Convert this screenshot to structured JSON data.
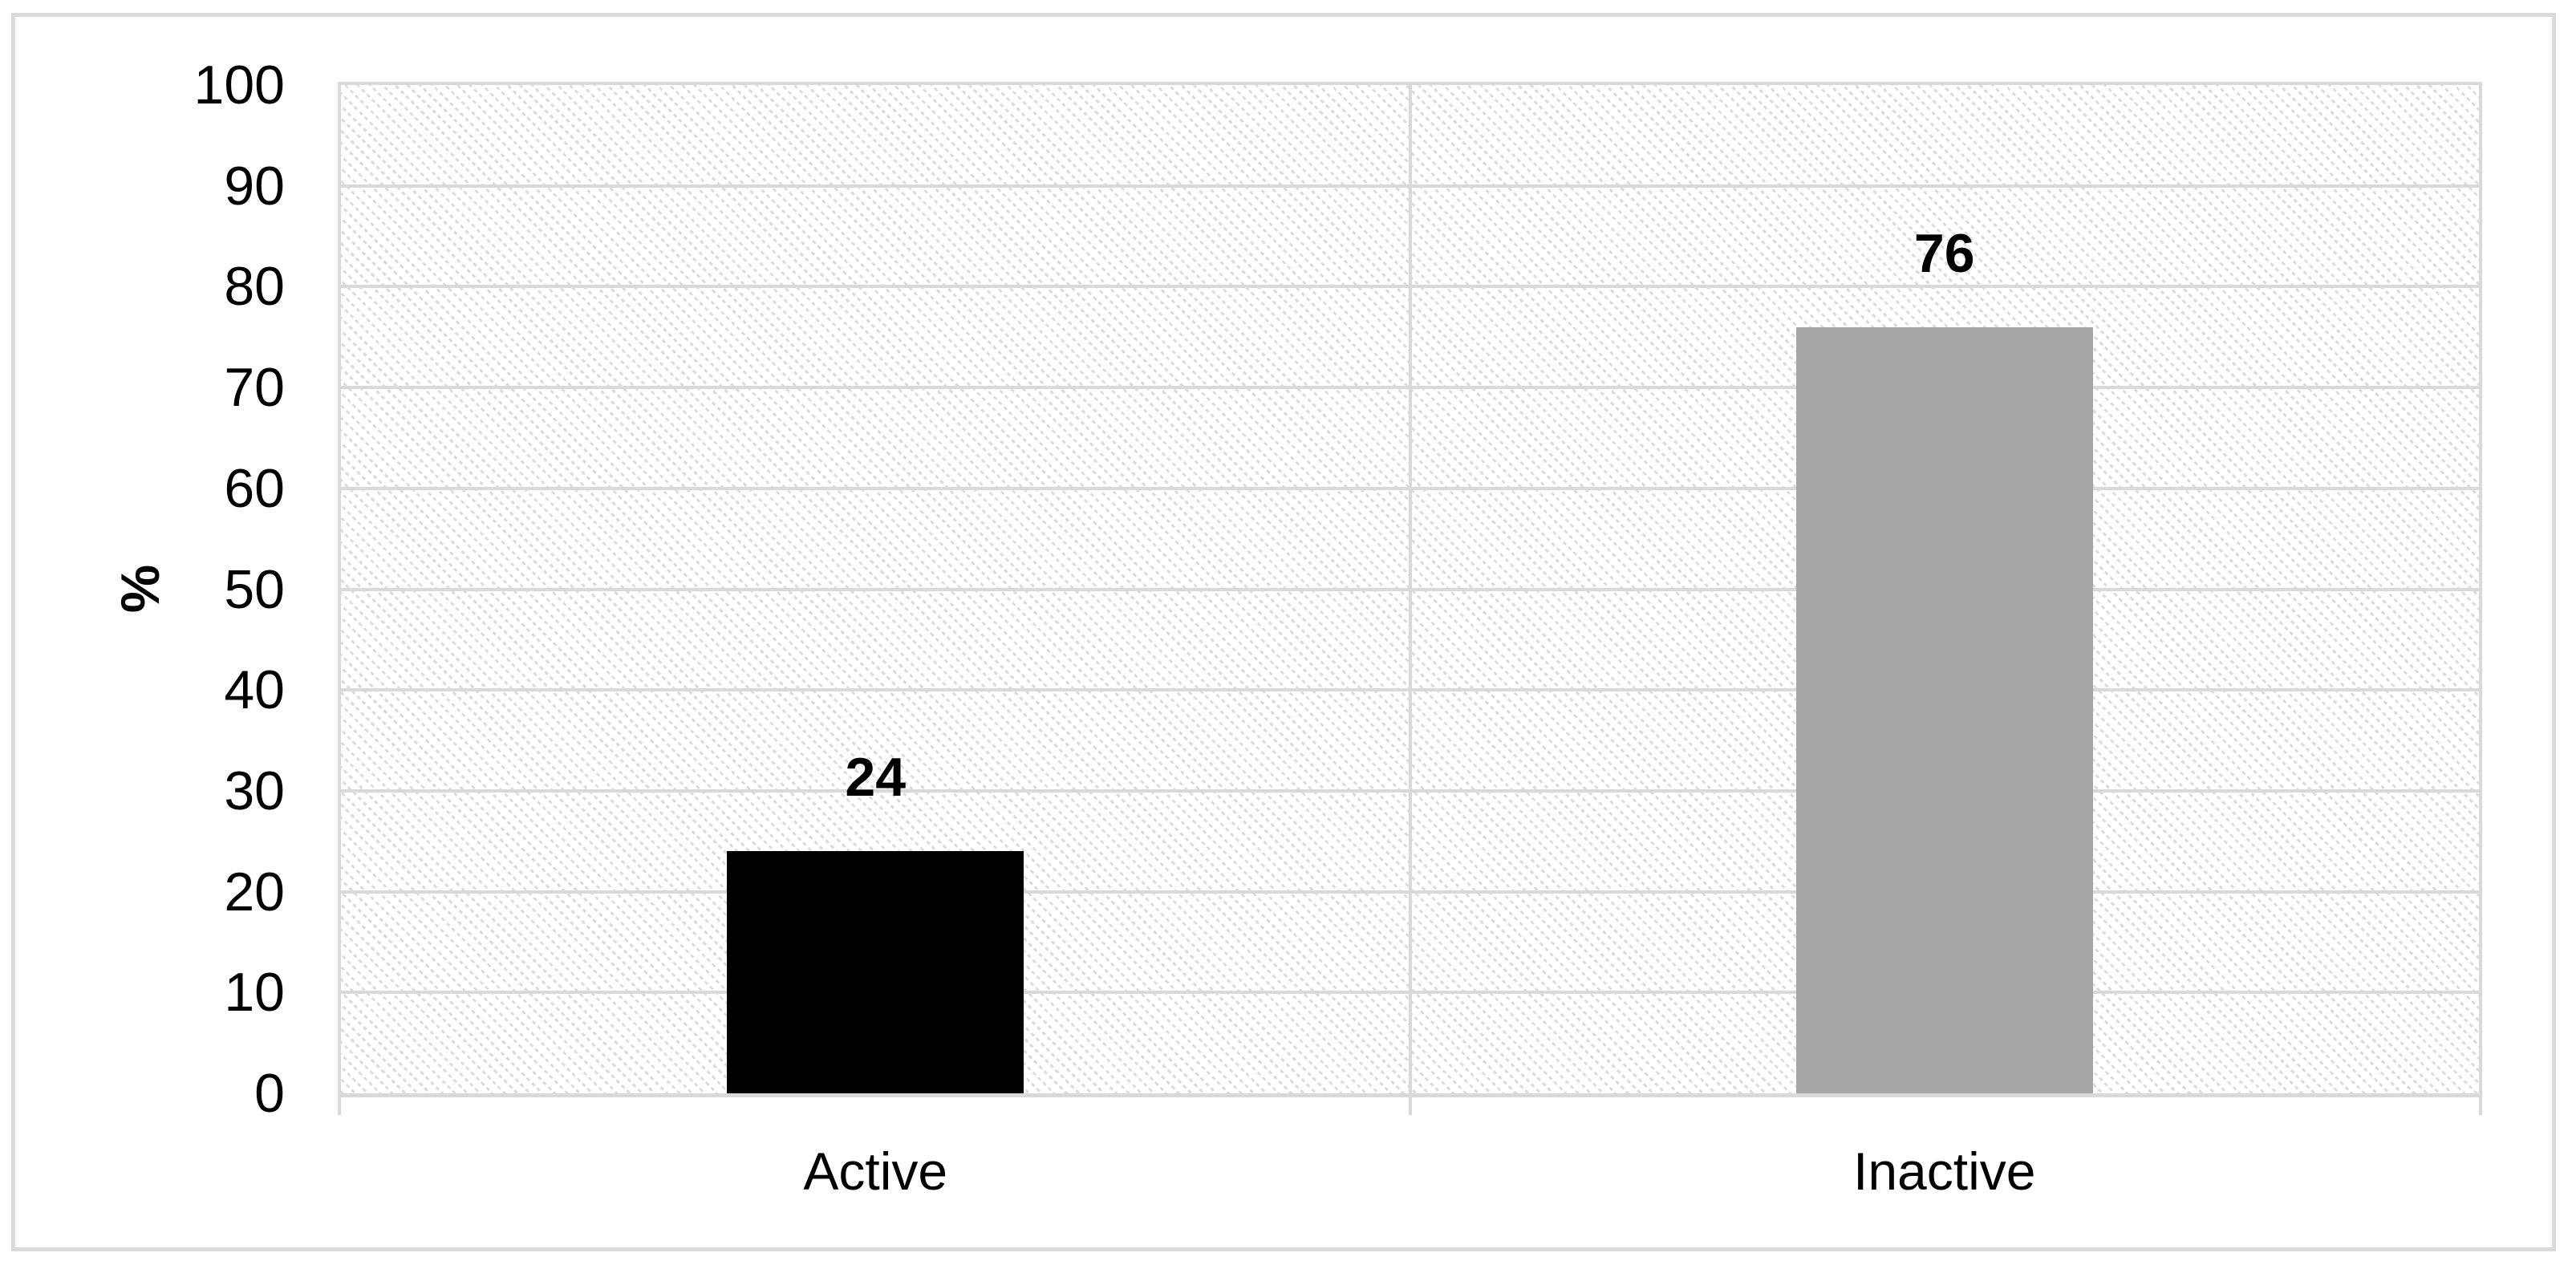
{
  "figure": {
    "background_color": "#ffffff",
    "border_color": "#d9d9d9"
  },
  "chart_data": {
    "type": "bar",
    "title": "",
    "categories": [
      "Active",
      "Inactive"
    ],
    "values": [
      24,
      76
    ],
    "data_labels": [
      "24",
      "76"
    ],
    "bar_colors": [
      "#000000",
      "#a6a6a6"
    ],
    "ylabel": "%",
    "xlabel": "",
    "ylim": [
      0,
      100
    ],
    "yticks": [
      0,
      10,
      20,
      30,
      40,
      50,
      60,
      70,
      80,
      90,
      100
    ],
    "grid": "horizontal gridlines on, vertical category separator on",
    "gridline_color": "#d9d9d9",
    "plot_background": "white with light gray dotted diagonal hatch",
    "hatch_color": "#dcdcdc",
    "legend": "none"
  }
}
